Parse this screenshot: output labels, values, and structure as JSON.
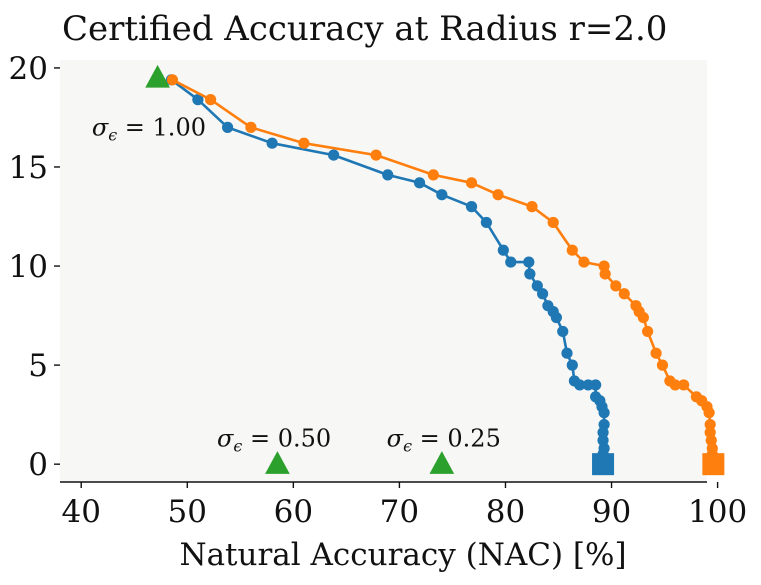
{
  "chart_data": {
    "type": "line",
    "title": "Certified Accuracy at Radius r=2.0",
    "xlabel": "Natural Accuracy (NAC) [%]",
    "ylabel": "",
    "xlim": [
      38,
      99
    ],
    "ylim": [
      -0.9,
      20.4
    ],
    "xticks": [
      40,
      50,
      60,
      70,
      80,
      90,
      100
    ],
    "yticks": [
      0,
      5,
      10,
      15,
      20
    ],
    "grid": false,
    "background": "#f7f7f5",
    "series": [
      {
        "color": "#1f77b4",
        "marker": "circle",
        "points": [
          [
            48.5,
            19.4
          ],
          [
            51.0,
            18.4
          ],
          [
            53.8,
            17.0
          ],
          [
            58.0,
            16.2
          ],
          [
            63.8,
            15.6
          ],
          [
            68.9,
            14.6
          ],
          [
            71.9,
            14.2
          ],
          [
            74.0,
            13.6
          ],
          [
            76.8,
            13.0
          ],
          [
            78.2,
            12.2
          ],
          [
            79.8,
            10.8
          ],
          [
            80.5,
            10.2
          ],
          [
            82.2,
            10.2
          ],
          [
            82.3,
            9.6
          ],
          [
            83.0,
            9.0
          ],
          [
            83.5,
            8.6
          ],
          [
            84.0,
            8.0
          ],
          [
            84.5,
            7.7
          ],
          [
            84.8,
            7.4
          ],
          [
            85.4,
            6.7
          ],
          [
            85.8,
            5.6
          ],
          [
            86.3,
            5.0
          ],
          [
            86.5,
            4.2
          ],
          [
            87.0,
            4.0
          ],
          [
            87.8,
            4.0
          ],
          [
            88.5,
            4.0
          ],
          [
            88.5,
            3.4
          ],
          [
            88.9,
            3.2
          ],
          [
            89.1,
            2.9
          ],
          [
            89.3,
            2.6
          ],
          [
            89.3,
            2.0
          ],
          [
            89.2,
            1.6
          ],
          [
            89.2,
            1.2
          ],
          [
            89.3,
            0.8
          ],
          [
            89.2,
            0.5
          ],
          [
            89.3,
            0.2
          ],
          [
            89.2,
            0.0
          ]
        ],
        "end_marker": {
          "shape": "square",
          "x": 89.2,
          "y": 0.0
        }
      },
      {
        "color": "#ff7f0e",
        "marker": "circle",
        "points": [
          [
            48.6,
            19.4
          ],
          [
            52.2,
            18.4
          ],
          [
            56.0,
            17.0
          ],
          [
            61.0,
            16.2
          ],
          [
            67.8,
            15.6
          ],
          [
            73.2,
            14.6
          ],
          [
            76.8,
            14.2
          ],
          [
            79.3,
            13.6
          ],
          [
            82.5,
            13.0
          ],
          [
            84.5,
            12.2
          ],
          [
            86.3,
            10.8
          ],
          [
            87.4,
            10.2
          ],
          [
            89.3,
            10.0
          ],
          [
            89.4,
            9.6
          ],
          [
            90.4,
            9.0
          ],
          [
            91.2,
            8.6
          ],
          [
            92.3,
            8.0
          ],
          [
            92.6,
            7.7
          ],
          [
            93.0,
            7.4
          ],
          [
            93.4,
            6.7
          ],
          [
            94.2,
            5.6
          ],
          [
            94.8,
            5.0
          ],
          [
            95.5,
            4.2
          ],
          [
            96.0,
            4.0
          ],
          [
            96.8,
            4.0
          ],
          [
            98.0,
            3.4
          ],
          [
            98.5,
            3.2
          ],
          [
            99.0,
            2.9
          ],
          [
            99.2,
            2.6
          ],
          [
            99.3,
            2.0
          ],
          [
            99.3,
            1.6
          ],
          [
            99.4,
            1.2
          ],
          [
            99.5,
            0.8
          ],
          [
            99.5,
            0.5
          ],
          [
            99.6,
            0.2
          ],
          [
            99.6,
            0.0
          ]
        ],
        "end_marker": {
          "shape": "square",
          "x": 99.6,
          "y": 0.0
        }
      }
    ],
    "triangles": [
      {
        "color": "#2ca02c",
        "x": 47.2,
        "y": 19.5
      },
      {
        "color": "#2ca02c",
        "x": 58.5,
        "y": 0.0
      },
      {
        "color": "#2ca02c",
        "x": 74.0,
        "y": 0.0
      }
    ],
    "annotations": [
      {
        "sigma": "σ",
        "sub": "ϵ",
        "rest": " = 1.00",
        "x": 41.0,
        "y": 16.6
      },
      {
        "sigma": "σ",
        "sub": "ϵ",
        "rest": " = 0.50",
        "x": 52.8,
        "y": 0.9
      },
      {
        "sigma": "σ",
        "sub": "ϵ",
        "rest": " = 0.25",
        "x": 68.8,
        "y": 0.9
      }
    ]
  }
}
